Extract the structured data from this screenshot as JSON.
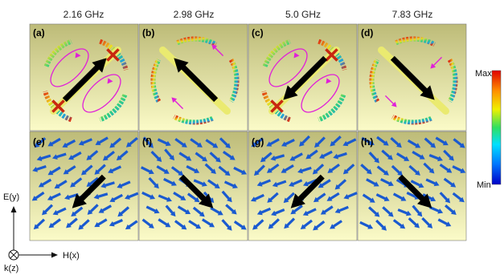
{
  "frequencies": [
    "2.16 GHz",
    "2.98 GHz",
    "5.0 GHz",
    "7.83 GHz"
  ],
  "top_panels": [
    {
      "label": "(a)",
      "arrow_dir": "up-right",
      "loops": "two-counter"
    },
    {
      "label": "(b)",
      "arrow_dir": "up-left",
      "loops": "none"
    },
    {
      "label": "(c)",
      "arrow_dir": "down-left",
      "loops": "two-counter"
    },
    {
      "label": "(d)",
      "arrow_dir": "down-right",
      "loops": "none"
    }
  ],
  "bottom_panels": [
    {
      "label": "(e)",
      "arrow_dir": "down-left"
    },
    {
      "label": "(f)",
      "arrow_dir": "down-right"
    },
    {
      "label": "(g)",
      "arrow_dir": "down-left"
    },
    {
      "label": "(h)",
      "arrow_dir": "down-right"
    }
  ],
  "colorbar": {
    "max_label": "Max",
    "min_label": "Min",
    "colors": [
      "#0000c8",
      "#0078ff",
      "#00e0ff",
      "#30e060",
      "#f0f000",
      "#ff9000",
      "#e00000"
    ]
  },
  "axes": {
    "y_label": "E(y)",
    "x_label": "H(x)",
    "z_label": "k(z)"
  },
  "colors": {
    "panel_bg_top": "#bdbb78",
    "panel_bg_bottom": "#fbfbc8",
    "loop": "#e020d8",
    "blue_arrow": "#1a5ad0",
    "big_arrow": "#000000"
  }
}
